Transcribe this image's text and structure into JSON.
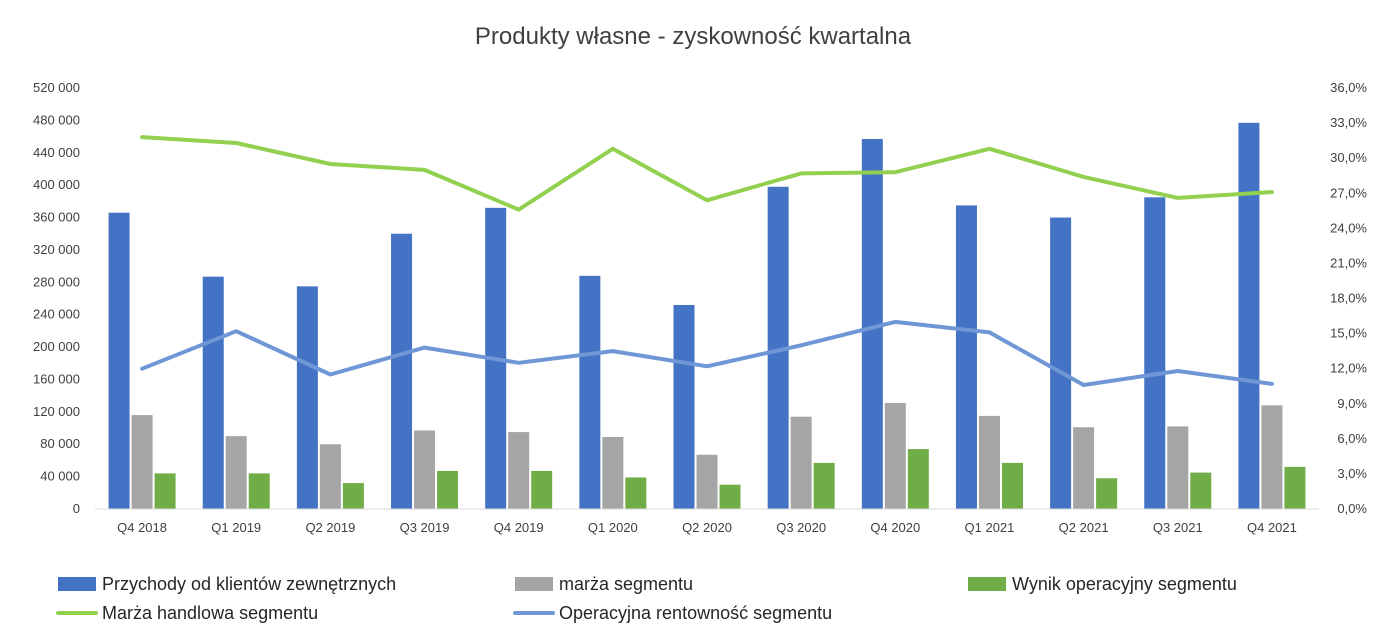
{
  "chart_data": {
    "type": "bar",
    "title": "Produkty własne - zyskowność kwartalna",
    "categories": [
      "Q4 2018",
      "Q1 2019",
      "Q2 2019",
      "Q3 2019",
      "Q4 2019",
      "Q1 2020",
      "Q2 2020",
      "Q3 2020",
      "Q4 2020",
      "Q1 2021",
      "Q2 2021",
      "Q3 2021",
      "Q4 2021"
    ],
    "y_left": {
      "min": 0,
      "max": 520000,
      "step": 40000,
      "tick_labels": [
        "0",
        "40 000",
        "80 000",
        "120 000",
        "160 000",
        "200 000",
        "240 000",
        "280 000",
        "320 000",
        "360 000",
        "400 000",
        "440 000",
        "480 000",
        "520 000"
      ]
    },
    "y_right": {
      "min": 0,
      "max": 36,
      "step": 3,
      "tick_labels": [
        "0,0%",
        "3,0%",
        "6,0%",
        "9,0%",
        "12,0%",
        "15,0%",
        "18,0%",
        "21,0%",
        "24,0%",
        "27,0%",
        "30,0%",
        "33,0%",
        "36,0%"
      ]
    },
    "grid": false,
    "legend_position": "bottom",
    "series": [
      {
        "name": "Przychody od klientów zewnętrznych",
        "type": "bar",
        "axis": "left",
        "color": "#4472c4",
        "values": [
          366000,
          287000,
          275000,
          340000,
          372000,
          288000,
          252000,
          398000,
          457000,
          375000,
          360000,
          385000,
          477000
        ]
      },
      {
        "name": "marża segmentu",
        "type": "bar",
        "axis": "left",
        "color": "#a5a5a5",
        "values": [
          116000,
          90000,
          80000,
          97000,
          95000,
          89000,
          67000,
          114000,
          131000,
          115000,
          101000,
          102000,
          128000
        ]
      },
      {
        "name": "Wynik operacyjny segmentu",
        "type": "bar",
        "axis": "left",
        "color": "#70ad47",
        "values": [
          44000,
          44000,
          32000,
          47000,
          47000,
          39000,
          30000,
          57000,
          74000,
          57000,
          38000,
          45000,
          52000
        ]
      },
      {
        "name": "Marża handlowa segmentu",
        "type": "line",
        "axis": "right",
        "color": "#92d050",
        "values": [
          31.8,
          31.3,
          29.5,
          29.0,
          25.6,
          30.8,
          26.4,
          28.7,
          28.8,
          30.8,
          28.4,
          26.6,
          27.1
        ]
      },
      {
        "name": "Operacyjna rentowność segmentu",
        "type": "line",
        "axis": "right",
        "color": "#6f97d6",
        "values": [
          12.0,
          15.2,
          11.5,
          13.8,
          12.5,
          13.5,
          12.2,
          14.0,
          16.0,
          15.1,
          10.6,
          11.8,
          10.7
        ]
      }
    ]
  }
}
